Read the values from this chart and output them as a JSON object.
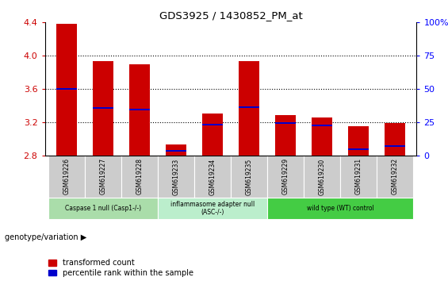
{
  "title": "GDS3925 / 1430852_PM_at",
  "samples": [
    "GSM619226",
    "GSM619227",
    "GSM619228",
    "GSM619233",
    "GSM619234",
    "GSM619235",
    "GSM619229",
    "GSM619230",
    "GSM619231",
    "GSM619232"
  ],
  "red_values": [
    4.38,
    3.93,
    3.9,
    2.93,
    3.3,
    3.93,
    3.28,
    3.25,
    3.15,
    3.19
  ],
  "blue_values": [
    3.6,
    3.37,
    3.35,
    2.85,
    3.17,
    3.38,
    3.19,
    3.16,
    2.87,
    2.91
  ],
  "ymin": 2.8,
  "ymax": 4.4,
  "yticks_left": [
    2.8,
    3.2,
    3.6,
    4.0,
    4.4
  ],
  "yticks_right": [
    0,
    25,
    50,
    75,
    100
  ],
  "groups": [
    {
      "label": "Caspase 1 null (Casp1-/-)",
      "indices": [
        0,
        1,
        2
      ],
      "color": "#aaddaa"
    },
    {
      "label": "inflammasome adapter null\n(ASC-/-)",
      "indices": [
        3,
        4,
        5
      ],
      "color": "#bbeecc"
    },
    {
      "label": "wild type (WT) control",
      "indices": [
        6,
        7,
        8,
        9
      ],
      "color": "#44cc44"
    }
  ],
  "bar_width": 0.55,
  "red_color": "#cc0000",
  "blue_color": "#0000cc",
  "sample_box_color": "#cccccc",
  "legend_red": "transformed count",
  "legend_blue": "percentile rank within the sample",
  "genotype_label": "genotype/variation"
}
